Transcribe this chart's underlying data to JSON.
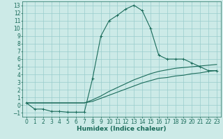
{
  "xlabel": "Humidex (Indice chaleur)",
  "bg_color": "#cceae7",
  "grid_color": "#99cccc",
  "line_color": "#1a6b5a",
  "xlim": [
    -0.5,
    23.5
  ],
  "ylim": [
    -1.5,
    13.5
  ],
  "xticks": [
    0,
    1,
    2,
    3,
    4,
    5,
    6,
    7,
    8,
    9,
    10,
    11,
    12,
    13,
    14,
    15,
    16,
    17,
    18,
    19,
    20,
    21,
    22,
    23
  ],
  "yticks": [
    -1,
    0,
    1,
    2,
    3,
    4,
    5,
    6,
    7,
    8,
    9,
    10,
    11,
    12,
    13
  ],
  "curve1_x": [
    0,
    1,
    2,
    3,
    4,
    5,
    6,
    7,
    8,
    9,
    10,
    11,
    12,
    13,
    14,
    15,
    16,
    17,
    18,
    19,
    20,
    21,
    22,
    23
  ],
  "curve1_y": [
    0.3,
    -0.5,
    -0.5,
    -0.8,
    -0.8,
    -0.9,
    -0.9,
    -0.9,
    3.5,
    9.0,
    11.0,
    11.7,
    12.5,
    13.0,
    12.3,
    10.0,
    6.5,
    6.0,
    6.0,
    6.0,
    5.5,
    5.0,
    4.5,
    4.5
  ],
  "line2_x": [
    0,
    23
  ],
  "line2_y": [
    0.3,
    4.5
  ],
  "line3_x": [
    0,
    23
  ],
  "line3_y": [
    0.3,
    4.5
  ],
  "curve2_x": [
    0,
    1,
    2,
    3,
    4,
    5,
    6,
    7,
    8,
    9,
    10,
    11,
    12,
    13,
    14,
    15,
    16,
    17,
    18,
    19,
    20,
    21,
    22,
    23
  ],
  "curve2_y": [
    0.3,
    0.3,
    0.3,
    0.3,
    0.3,
    0.3,
    0.3,
    0.3,
    0.5,
    0.9,
    1.3,
    1.7,
    2.1,
    2.5,
    2.9,
    3.2,
    3.5,
    3.6,
    3.8,
    3.9,
    4.1,
    4.2,
    4.4,
    4.5
  ],
  "curve3_x": [
    0,
    1,
    2,
    3,
    4,
    5,
    6,
    7,
    8,
    9,
    10,
    11,
    12,
    13,
    14,
    15,
    16,
    17,
    18,
    19,
    20,
    21,
    22,
    23
  ],
  "curve3_y": [
    0.3,
    0.3,
    0.3,
    0.3,
    0.3,
    0.3,
    0.3,
    0.3,
    0.7,
    1.2,
    1.8,
    2.3,
    2.8,
    3.3,
    3.7,
    4.1,
    4.4,
    4.6,
    4.8,
    4.9,
    5.0,
    5.1,
    5.2,
    5.3
  ],
  "font_size": 5.5,
  "xlabel_fontsize": 6.5
}
